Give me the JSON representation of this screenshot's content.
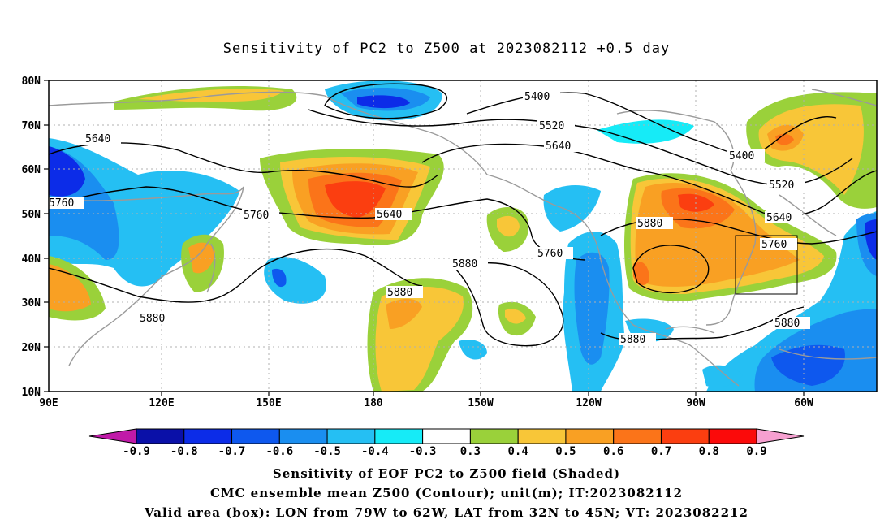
{
  "title": "Sensitivity of PC2 to Z500 at 2023082112 +0.5 day",
  "lat_labels": [
    "80N",
    "70N",
    "60N",
    "50N",
    "40N",
    "30N",
    "20N",
    "10N"
  ],
  "lon_labels": [
    "90E",
    "120E",
    "150E",
    "180",
    "150W",
    "120W",
    "90W",
    "60W"
  ],
  "contour_labels": [
    {
      "text": "5400"
    },
    {
      "text": "5520"
    },
    {
      "text": "5640"
    },
    {
      "text": "5400"
    },
    {
      "text": "5520"
    },
    {
      "text": "5640"
    },
    {
      "text": "5760"
    },
    {
      "text": "5640"
    },
    {
      "text": "5760"
    },
    {
      "text": "5640"
    },
    {
      "text": "5760"
    },
    {
      "text": "5880"
    },
    {
      "text": "5880"
    },
    {
      "text": "5880"
    },
    {
      "text": "5760"
    },
    {
      "text": "5880"
    },
    {
      "text": "5880"
    },
    {
      "text": "5880"
    }
  ],
  "colorbar": {
    "labels": [
      "-0.9",
      "-0.8",
      "-0.7",
      "-0.6",
      "-0.5",
      "-0.4",
      "-0.3",
      "0.3",
      "0.4",
      "0.5",
      "0.6",
      "0.7",
      "0.8",
      "0.9"
    ],
    "colors": [
      "#0a10a8",
      "#0c2ce8",
      "#0e58ee",
      "#1a8ef0",
      "#25bff3",
      "#16ebf7",
      "#ffffff",
      "#9ad13a",
      "#f8c638",
      "#f9a023",
      "#fb7419",
      "#fb3e10",
      "#fb0a0a"
    ],
    "low_color": "#c01aa8",
    "high_color": "#f6a0d0"
  },
  "caption": {
    "line1": "Sensitivity of EOF PC2 to Z500 field (Shaded)",
    "line2": "CMC ensemble mean Z500 (Contour); unit(m); IT:2023082112",
    "line3": "Valid area (box): LON from 79W to 62W, LAT from 32N to 45N; VT: 2023082212"
  }
}
